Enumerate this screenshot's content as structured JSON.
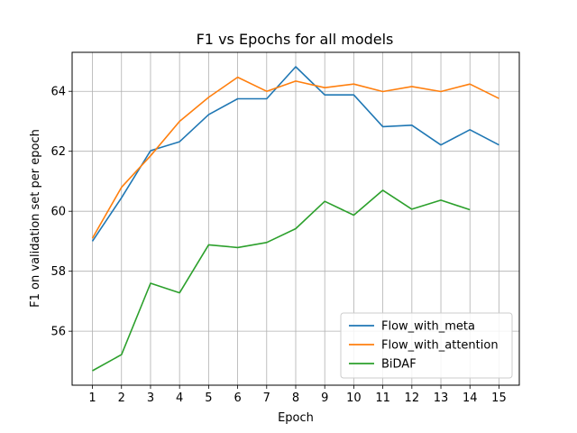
{
  "chart_data": {
    "type": "line",
    "title": "F1 vs Epochs for all models",
    "xlabel": "Epoch",
    "ylabel": "F1 on validation set per epoch",
    "x": [
      1,
      2,
      3,
      4,
      5,
      6,
      7,
      8,
      9,
      10,
      11,
      12,
      13,
      14,
      15
    ],
    "xlim": [
      0.3,
      15.7
    ],
    "ylim": [
      54.2,
      65.3
    ],
    "xticks": [
      1,
      2,
      3,
      4,
      5,
      6,
      7,
      8,
      9,
      10,
      11,
      12,
      13,
      14,
      15
    ],
    "yticks": [
      56,
      58,
      60,
      62,
      64
    ],
    "grid": true,
    "legend_position": "lower-right",
    "series": [
      {
        "name": "Flow_with_meta",
        "color": "#1f77b4",
        "values": [
          59.0,
          60.45,
          62.02,
          62.32,
          63.22,
          63.75,
          63.75,
          64.82,
          63.88,
          63.88,
          62.82,
          62.87,
          62.21,
          62.72,
          62.21
        ]
      },
      {
        "name": "Flow_with_attention",
        "color": "#ff7f0e",
        "values": [
          59.1,
          60.8,
          61.85,
          63.0,
          63.8,
          64.47,
          64.0,
          64.34,
          64.12,
          64.24,
          63.99,
          64.16,
          63.99,
          64.24,
          63.76
        ]
      },
      {
        "name": "BiDAF",
        "color": "#2ca02c",
        "values": [
          54.68,
          55.22,
          57.6,
          57.28,
          58.88,
          58.79,
          58.96,
          59.42,
          60.33,
          59.87,
          60.7,
          60.07,
          60.37,
          60.05,
          null
        ]
      }
    ]
  }
}
